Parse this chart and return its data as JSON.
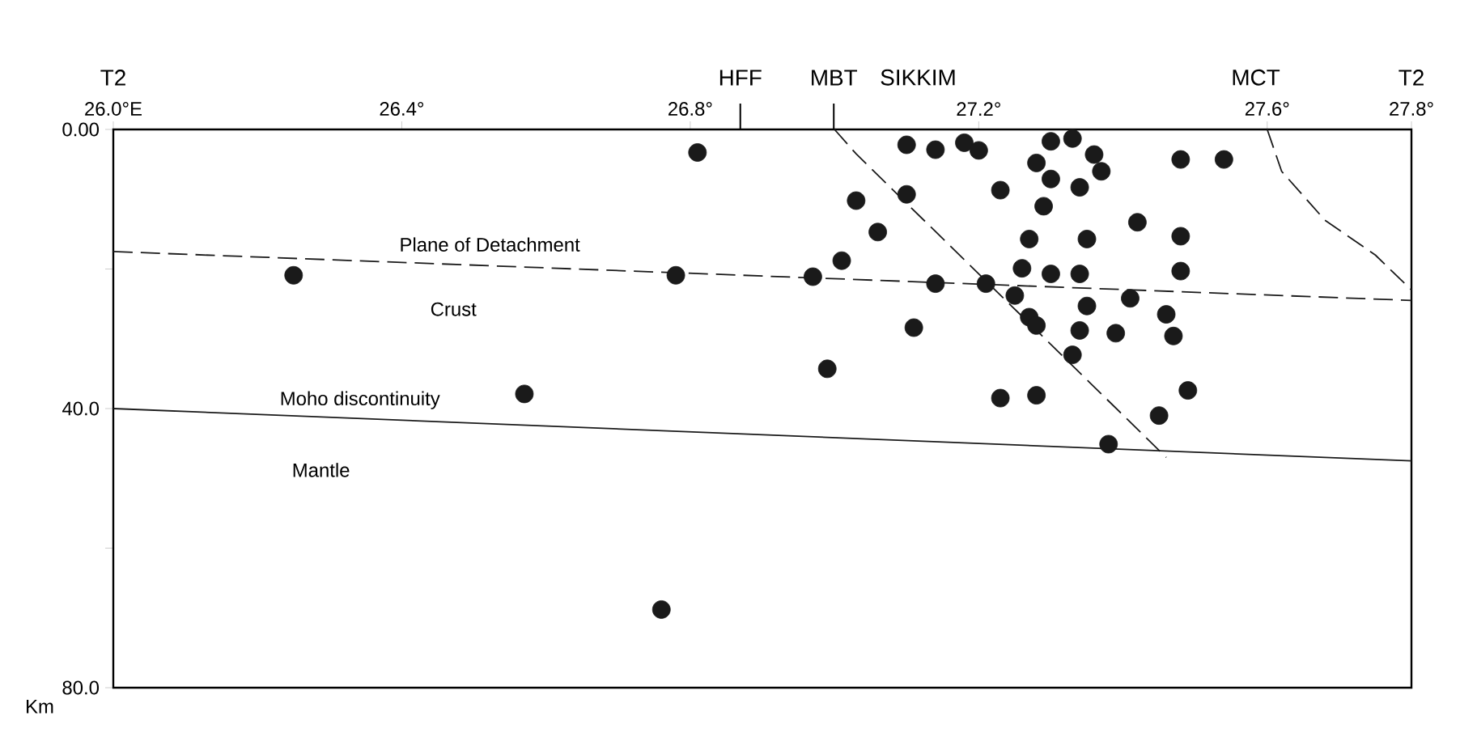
{
  "chart_data": {
    "type": "scatter",
    "xlim": [
      26.0,
      27.8
    ],
    "xticks": [
      {
        "value": 26.0,
        "label": "26.0°E"
      },
      {
        "value": 26.4,
        "label": "26.4°"
      },
      {
        "value": 26.8,
        "label": "26.8°"
      },
      {
        "value": 27.2,
        "label": "27.2°"
      },
      {
        "value": 27.6,
        "label": "27.6°"
      },
      {
        "value": 27.8,
        "label": "27.8°"
      }
    ],
    "ylim": [
      80,
      0
    ],
    "yticks": [
      {
        "value": 0,
        "label": "0.00"
      },
      {
        "value": 20,
        "label": null
      },
      {
        "value": 40,
        "label": "40.0"
      },
      {
        "value": 60,
        "label": null
      },
      {
        "value": 80,
        "label": "80.0"
      }
    ],
    "ylabel": "Km",
    "series": [
      {
        "color": "#1a1a1a",
        "marker": "circle",
        "x": [
          26.81,
          26.25,
          26.78,
          26.57,
          26.76,
          27.1,
          27.14,
          27.18,
          27.2,
          27.28,
          27.3,
          27.33,
          27.36,
          27.37,
          27.3,
          27.34,
          27.48,
          27.54,
          27.03,
          27.1,
          27.23,
          27.29,
          27.06,
          27.01,
          26.97,
          27.14,
          27.21,
          27.27,
          27.35,
          27.42,
          27.48,
          27.48,
          27.26,
          27.3,
          27.34,
          27.27,
          27.25,
          27.35,
          27.34,
          27.39,
          27.41,
          27.46,
          27.47,
          27.33,
          27.28,
          27.11,
          26.99,
          27.23,
          27.28,
          27.49,
          27.45,
          27.38
        ],
        "values": [
          3.3,
          20.9,
          20.9,
          37.9,
          68.8,
          2.2,
          2.9,
          1.9,
          3.0,
          4.8,
          1.7,
          1.3,
          3.6,
          6.0,
          7.1,
          8.3,
          4.3,
          4.3,
          10.2,
          9.3,
          8.7,
          11.0,
          14.7,
          18.8,
          21.1,
          22.1,
          22.1,
          15.7,
          15.7,
          13.3,
          15.3,
          20.3,
          19.9,
          20.7,
          20.7,
          26.9,
          23.8,
          25.3,
          28.8,
          29.2,
          24.2,
          26.5,
          29.6,
          32.3,
          28.1,
          28.4,
          34.3,
          38.5,
          38.1,
          37.4,
          41.0,
          45.1
        ]
      },
      {
        "type": "line",
        "color": "#1a1a1a",
        "line_style": "dashed",
        "marker": "none",
        "x": [
          26.0,
          27.8
        ],
        "values": [
          17.5,
          24.5
        ]
      },
      {
        "type": "line",
        "color": "#1a1a1a",
        "line_style": "solid",
        "marker": "none",
        "x": [
          26.0,
          27.8
        ],
        "values": [
          40.0,
          47.5
        ]
      },
      {
        "type": "line",
        "color": "#1a1a1a",
        "line_style": "dashed",
        "marker": "none",
        "x": [
          27.0,
          27.03,
          27.46
        ],
        "values": [
          0,
          3.5,
          47.0
        ]
      },
      {
        "type": "line",
        "color": "#1a1a1a",
        "line_style": "dashed",
        "marker": "none",
        "x": [
          27.6,
          27.62,
          27.68,
          27.75,
          27.8
        ],
        "values": [
          0,
          6,
          13,
          18,
          23
        ]
      }
    ],
    "annotations": [
      "T2",
      "HFF",
      "MBT",
      "SIKKIM",
      "MCT",
      "T2",
      "Plane of Detachment",
      "Crust",
      "Moho discontinuity",
      "Mantle"
    ]
  }
}
